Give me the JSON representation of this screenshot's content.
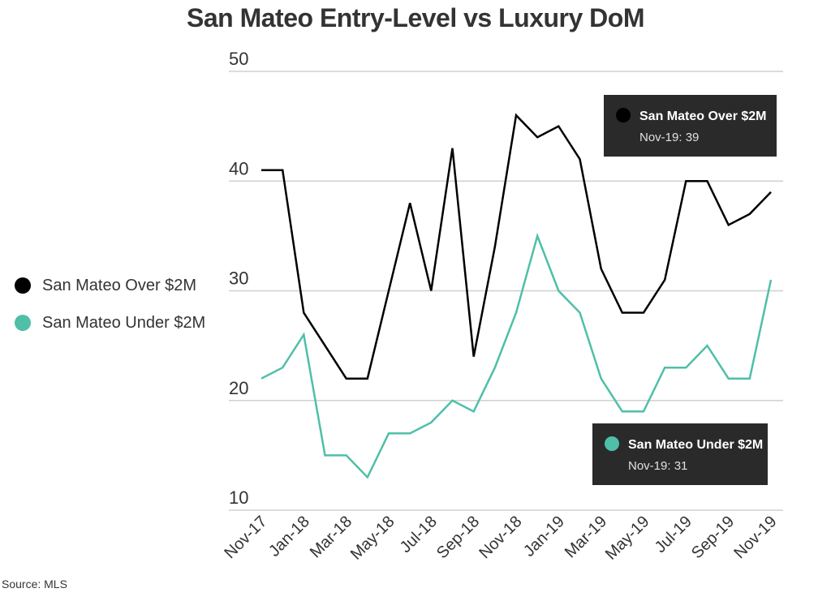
{
  "chart_data": {
    "type": "line",
    "title": "San Mateo Entry-Level vs Luxury DoM",
    "xlabel": "",
    "ylabel": "",
    "ylim": [
      10,
      50
    ],
    "yticks": [
      10,
      20,
      30,
      40,
      50
    ],
    "x": [
      "Nov-17",
      "Dec-17",
      "Jan-18",
      "Feb-18",
      "Mar-18",
      "Apr-18",
      "May-18",
      "Jun-18",
      "Jul-18",
      "Aug-18",
      "Sep-18",
      "Oct-18",
      "Nov-18",
      "Dec-18",
      "Jan-19",
      "Feb-19",
      "Mar-19",
      "Apr-19",
      "May-19",
      "Jun-19",
      "Jul-19",
      "Aug-19",
      "Sep-19",
      "Oct-19",
      "Nov-19"
    ],
    "xtick_labels": [
      "Nov-17",
      "Jan-18",
      "Mar-18",
      "May-18",
      "Jul-18",
      "Sep-18",
      "Nov-18",
      "Jan-19",
      "Mar-19",
      "May-19",
      "Jul-19",
      "Sep-19",
      "Nov-19"
    ],
    "series": [
      {
        "name": "San Mateo Over $2M",
        "color": "#000000",
        "values": [
          41,
          41,
          28,
          25,
          22,
          22,
          30,
          38,
          30,
          43,
          24,
          34,
          46,
          44,
          45,
          42,
          32,
          28,
          28,
          31,
          40,
          40,
          36,
          37,
          39
        ]
      },
      {
        "name": "San Mateo Under $2M",
        "color": "#4fbfa8",
        "values": [
          22,
          23,
          26,
          15,
          15,
          13,
          17,
          17,
          18,
          20,
          19,
          23,
          28,
          35,
          30,
          28,
          22,
          19,
          19,
          23,
          23,
          25,
          22,
          22,
          31
        ]
      }
    ],
    "tooltips": [
      {
        "series_name": "San Mateo Over $2M",
        "value_text": "Nov-19: 39",
        "dot_color": "#000000"
      },
      {
        "series_name": "San Mateo Under $2M",
        "value_text": "Nov-19: 31",
        "dot_color": "#4fbfa8"
      }
    ],
    "legend": {
      "placement": "left",
      "items": [
        {
          "label": "San Mateo Over $2M",
          "color": "#000000"
        },
        {
          "label": "San Mateo Under $2M",
          "color": "#4fbfa8"
        }
      ]
    },
    "source": "Source:  MLS"
  }
}
